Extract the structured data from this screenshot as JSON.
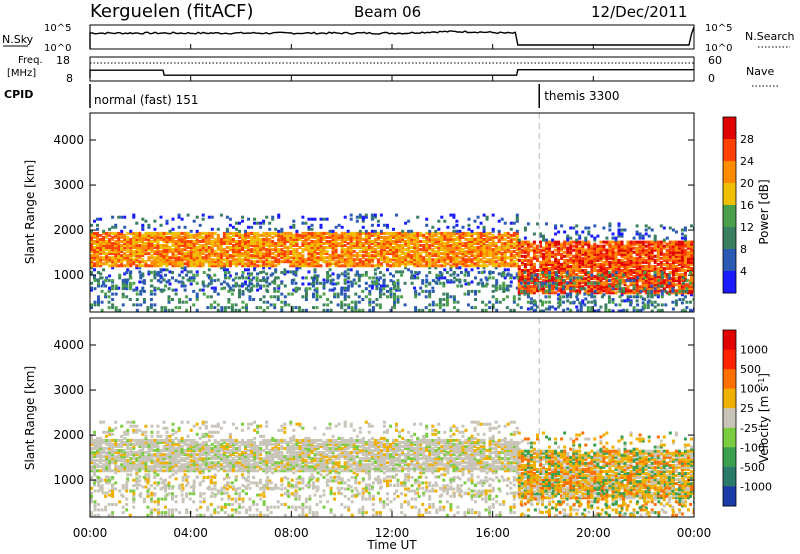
{
  "header": {
    "station": "Kerguelen (fitACF)",
    "beam": "Beam 06",
    "date": "12/Dec/2011"
  },
  "top_panels": {
    "nsky_label": "N.Sky",
    "nsky_ticks": [
      "10^5",
      "10^0"
    ],
    "nsearch_label": "N.Search",
    "nsearch_ticks": [
      "10^5",
      "10^0"
    ],
    "freq_label_1": "Freq.",
    "freq_label_2": "[MHz]",
    "freq_ticks": [
      "18",
      "8"
    ],
    "nave_label": "Nave",
    "nave_ticks": [
      "60",
      "0"
    ],
    "cpid_label": "CPID",
    "cpid_segments": [
      {
        "name": "normal (fast) 151",
        "start_hour": 0
      },
      {
        "name": "themis 3300",
        "start_hour": 17.85
      }
    ],
    "freq_mhz_series": [
      {
        "hour": 0,
        "value": 12.5
      },
      {
        "hour": 2.9,
        "value": 12.5
      },
      {
        "hour": 2.95,
        "value": 10.4
      },
      {
        "hour": 16.95,
        "value": 10.4
      },
      {
        "hour": 17.0,
        "value": 12.7
      },
      {
        "hour": 24.0,
        "value": 12.7
      }
    ]
  },
  "chart_data": [
    {
      "type": "heatmap",
      "name": "power",
      "ylabel": "Slant Range [km]",
      "xlabel": "",
      "xlim_hours": [
        0,
        24
      ],
      "ylim": [
        180,
        4600
      ],
      "yticks": [
        "4000",
        "3000",
        "2000",
        "1000"
      ],
      "colorbar_label": "Power [dB]",
      "colorbar_ticks": [
        "28",
        "24",
        "20",
        "16",
        "12",
        "8",
        "4"
      ],
      "colors": [
        "#1a1aff",
        "#2a5ab4",
        "#3a8060",
        "#4aa04a",
        "#f0c000",
        "#ff8c00",
        "#ff4000",
        "#e00000"
      ],
      "echo_bands": [
        {
          "t0": 0,
          "t1": 17,
          "r0": 1200,
          "r1": 2000,
          "level": 5
        },
        {
          "t0": 17,
          "t1": 24,
          "r0": 600,
          "r1": 1800,
          "level": 6
        }
      ]
    },
    {
      "type": "heatmap",
      "name": "velocity",
      "ylabel": "Slant Range [km]",
      "xlabel": "Time UT",
      "xlim_hours": [
        0,
        24
      ],
      "ylim": [
        180,
        4600
      ],
      "yticks": [
        "4000",
        "3000",
        "2000",
        "1000"
      ],
      "xticks": [
        "00:00",
        "04:00",
        "08:00",
        "12:00",
        "16:00",
        "20:00",
        "00:00"
      ],
      "colorbar_label": "Velocity [m s^-1]",
      "colorbar_ticks": [
        "1000",
        "500",
        "100",
        "25",
        "-25",
        "-100",
        "-500",
        "-1000"
      ],
      "colors": [
        "#1a3aa8",
        "#2a7a6a",
        "#3aa050",
        "#7acc40",
        "#c8c4b8",
        "#f0b000",
        "#ff7000",
        "#ff2000",
        "#e00000"
      ],
      "echo_bands": [
        {
          "t0": 0,
          "t1": 17,
          "r0": 1200,
          "r1": 1950,
          "level": 4
        },
        {
          "t0": 17,
          "t1": 24,
          "r0": 600,
          "r1": 1700,
          "level": 6
        }
      ]
    }
  ]
}
